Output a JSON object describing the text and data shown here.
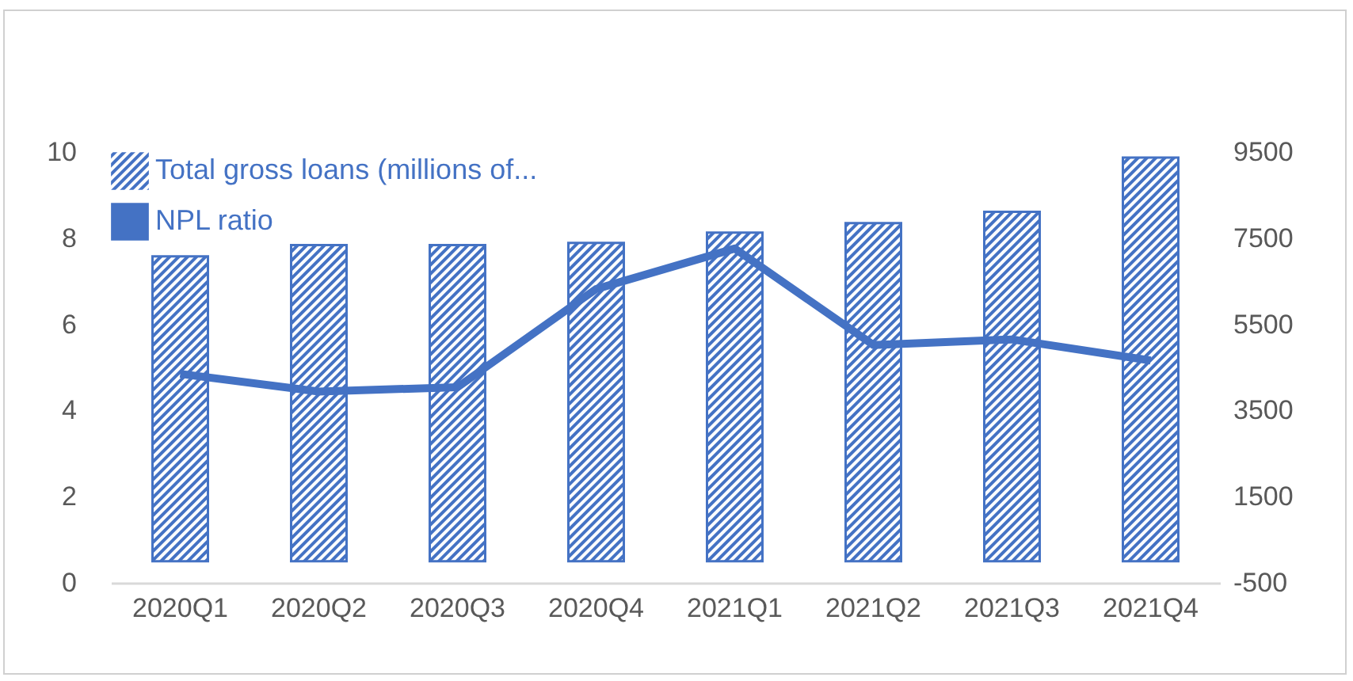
{
  "chart_data": {
    "type": "bar",
    "categories": [
      "2020Q1",
      "2020Q2",
      "2020Q3",
      "2020Q4",
      "2021Q1",
      "2021Q2",
      "2021Q3",
      "2021Q4"
    ],
    "series": [
      {
        "name": "Total gross loans (millions of...",
        "axis": "y2",
        "color": "#4472c4",
        "values": [
          7080,
          7340,
          7340,
          7390,
          7630,
          7850,
          8110,
          9370
        ]
      },
      {
        "name": "NPL ratio",
        "type": "line",
        "color": "#4472c4",
        "values": [
          4.85,
          4.44,
          4.54,
          6.82,
          7.76,
          5.52,
          5.65,
          5.16
        ]
      }
    ],
    "ylim": [
      0,
      10
    ],
    "yticks": [
      0,
      2,
      4,
      6,
      8,
      10
    ],
    "y2lim": [
      -500,
      9500
    ],
    "y2ticks": [
      -500,
      1500,
      3500,
      5500,
      7500,
      9500
    ],
    "grid": false,
    "legend": "top left",
    "marker": "none",
    "line_style": "solid"
  }
}
